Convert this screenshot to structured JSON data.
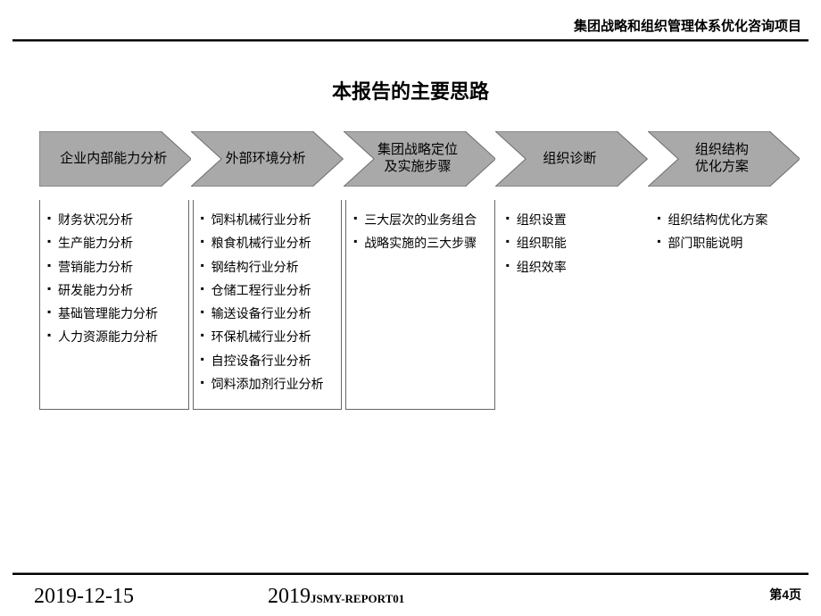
{
  "header_right": "集团战略和组织管理体系优化咨询项目",
  "title": "本报告的主要思路",
  "arrow_style": {
    "fill": "#a9a9a9",
    "stroke": "#6b6b6b",
    "stroke_width": 1
  },
  "steps": [
    {
      "label": "企业内部能力分析"
    },
    {
      "label": "外部环境分析"
    },
    {
      "label": "集团战略定位\n及实施步骤"
    },
    {
      "label": "组织诊断"
    },
    {
      "label": "组织结构\n优化方案"
    }
  ],
  "columns": [
    {
      "boxed": true,
      "items": [
        "财务状况分析",
        "生产能力分析",
        "营销能力分析",
        "研发能力分析",
        "基础管理能力分析",
        "人力资源能力分析"
      ]
    },
    {
      "boxed": true,
      "items": [
        "饲料机械行业分析",
        "粮食机械行业分析",
        "钢结构行业分析",
        "仓储工程行业分析",
        "输送设备行业分析",
        "环保机械行业分析",
        "自控设备行业分析",
        "饲料添加剂行业分析"
      ]
    },
    {
      "boxed": true,
      "items": [
        "三大层次的业务组合",
        "战略实施的三大步骤"
      ]
    },
    {
      "boxed": false,
      "items": [
        "组织设置",
        "组织职能",
        "组织效率"
      ]
    },
    {
      "boxed": false,
      "items": [
        "组织结构优化方案",
        "部门职能说明"
      ]
    }
  ],
  "footer": {
    "date": "2019-12-15",
    "year": "2019",
    "code": "JSMY-REPORT01",
    "page": "第4页"
  }
}
